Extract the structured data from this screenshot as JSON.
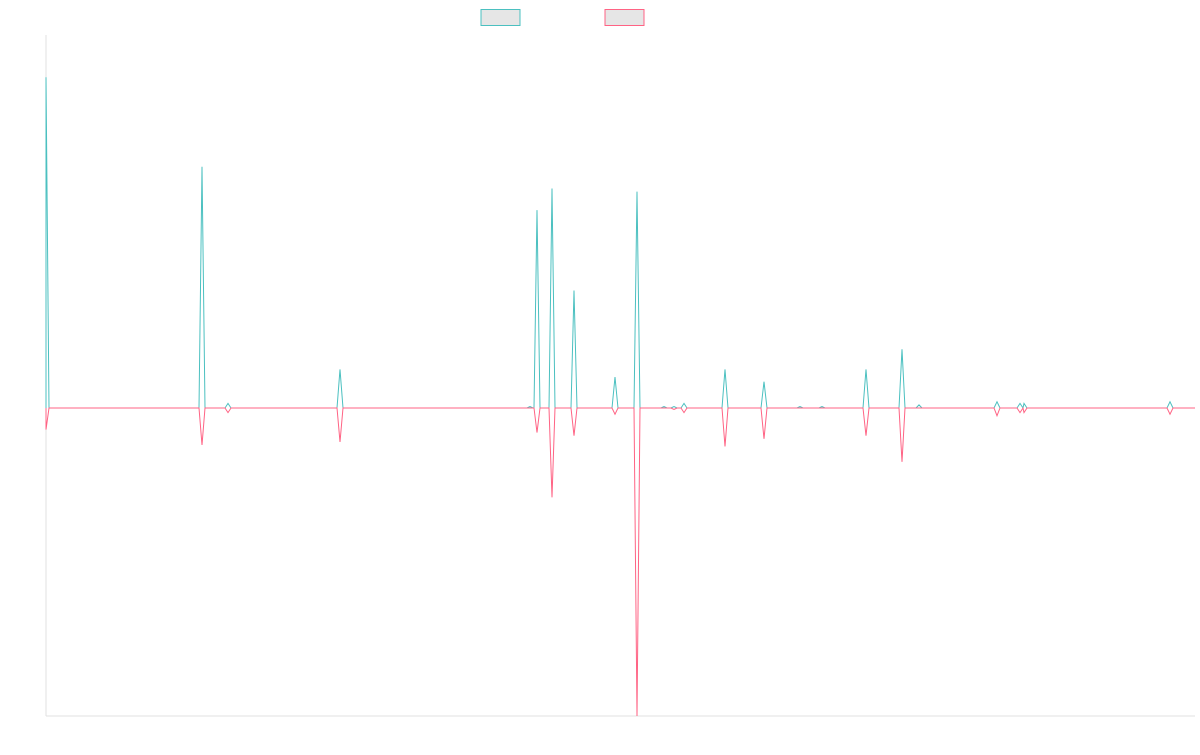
{
  "chart_data": {
    "type": "line",
    "title": "",
    "xlabel": "",
    "ylabel": "",
    "grid": false,
    "legend_position": "top",
    "ylim": [
      -100,
      120
    ],
    "xlim": [
      0,
      1149
    ],
    "series": [
      {
        "color": "#4bc0c0",
        "swatch_fill": "#e6e6e6",
        "peaks": [
          {
            "x": 0,
            "y": 107
          },
          {
            "x": 156,
            "y": 78
          },
          {
            "x": 182,
            "y": 1.5
          },
          {
            "x": 294,
            "y": 12.5
          },
          {
            "x": 484,
            "y": 0.5
          },
          {
            "x": 491,
            "y": 64
          },
          {
            "x": 506,
            "y": 71
          },
          {
            "x": 528,
            "y": 38
          },
          {
            "x": 569,
            "y": 10
          },
          {
            "x": 591,
            "y": 70
          },
          {
            "x": 618,
            "y": 0.5
          },
          {
            "x": 628,
            "y": 0.5
          },
          {
            "x": 638,
            "y": 1.5
          },
          {
            "x": 679,
            "y": 12.5
          },
          {
            "x": 718,
            "y": 8.5
          },
          {
            "x": 754,
            "y": 0.5
          },
          {
            "x": 776,
            "y": 0.5
          },
          {
            "x": 820,
            "y": 12.5
          },
          {
            "x": 856,
            "y": 19
          },
          {
            "x": 873,
            "y": 1
          },
          {
            "x": 951,
            "y": 2
          },
          {
            "x": 974,
            "y": 1.5
          },
          {
            "x": 978,
            "y": 1.5
          },
          {
            "x": 1124,
            "y": 2
          }
        ]
      },
      {
        "color": "#ff6384",
        "swatch_fill": "#e6e6e6",
        "peaks": [
          {
            "x": 0,
            "y": -7
          },
          {
            "x": 156,
            "y": -12
          },
          {
            "x": 182,
            "y": -1.5
          },
          {
            "x": 294,
            "y": -11
          },
          {
            "x": 491,
            "y": -8
          },
          {
            "x": 506,
            "y": -29
          },
          {
            "x": 528,
            "y": -9
          },
          {
            "x": 569,
            "y": -2
          },
          {
            "x": 591,
            "y": -100
          },
          {
            "x": 628,
            "y": -0.5
          },
          {
            "x": 638,
            "y": -1.5
          },
          {
            "x": 679,
            "y": -12.5
          },
          {
            "x": 718,
            "y": -10
          },
          {
            "x": 820,
            "y": -9
          },
          {
            "x": 856,
            "y": -17.5
          },
          {
            "x": 951,
            "y": -2.5
          },
          {
            "x": 974,
            "y": -1.5
          },
          {
            "x": 978,
            "y": -1.5
          },
          {
            "x": 1124,
            "y": -2
          }
        ]
      }
    ]
  }
}
